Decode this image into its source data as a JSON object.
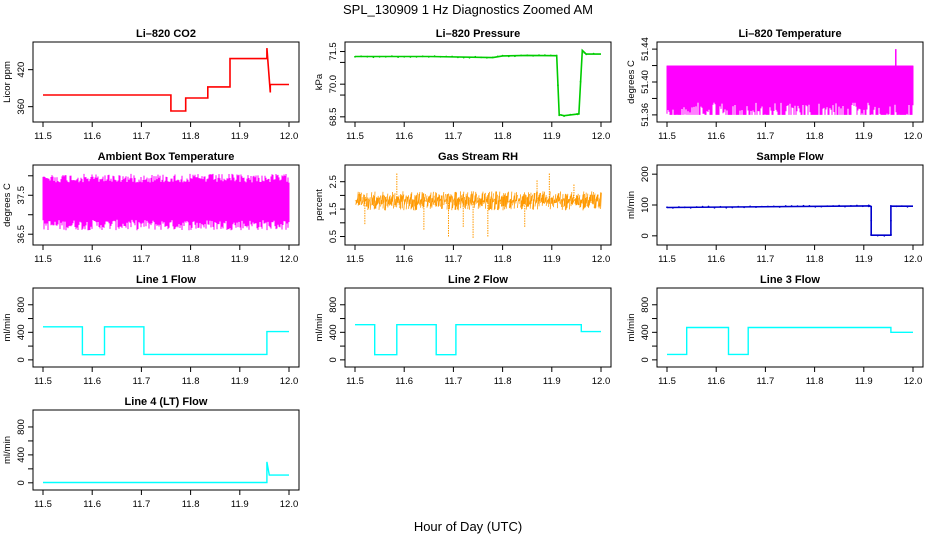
{
  "figure": {
    "title": "SPL_130909  1 Hz Diagnostics Zoomed AM",
    "xlabel": "Hour of Day (UTC)"
  },
  "chart_data": [
    {
      "id": "co2",
      "type": "line",
      "title": "Li–820 CO2",
      "ylabel": "Licor ppm",
      "color": "#ff0000",
      "xlim": [
        11.5,
        12.0
      ],
      "ylim": [
        340,
        460
      ],
      "xticks": [
        "11.5",
        "11.6",
        "11.7",
        "11.8",
        "11.9",
        "12.0"
      ],
      "yticks": [
        {
          "v": 360,
          "label": "360"
        },
        {
          "v": 420,
          "label": "420"
        }
      ],
      "style": "step",
      "x": [
        11.5,
        11.76,
        11.76,
        11.79,
        11.79,
        11.835,
        11.835,
        11.88,
        11.88,
        11.955,
        11.955,
        11.962,
        11.962,
        12.0
      ],
      "y": [
        379,
        379,
        353,
        353,
        374,
        374,
        392,
        392,
        438,
        438,
        455,
        383,
        396,
        396
      ]
    },
    {
      "id": "pressure",
      "type": "line",
      "title": "Li–820 Pressure",
      "ylabel": "kPa",
      "color": "#00cc00",
      "xlim": [
        11.5,
        12.0
      ],
      "ylim": [
        68.4,
        71.8
      ],
      "xticks": [
        "11.5",
        "11.6",
        "11.7",
        "11.8",
        "11.9",
        "12.0"
      ],
      "yticks": [
        {
          "v": 68.5,
          "label": "68.5"
        },
        {
          "v": 69.5,
          "label": ""
        },
        {
          "v": 70.0,
          "label": "70.0"
        },
        {
          "v": 71.0,
          "label": ""
        },
        {
          "v": 71.5,
          "label": "71.5"
        }
      ],
      "style": "line",
      "x": [
        11.5,
        11.65,
        11.78,
        11.8,
        11.85,
        11.91,
        11.915,
        11.925,
        11.95,
        11.955,
        11.962,
        11.97,
        12.0
      ],
      "y": [
        71.27,
        71.27,
        71.22,
        71.3,
        71.32,
        71.31,
        68.6,
        68.55,
        68.62,
        68.65,
        71.55,
        71.38,
        71.38
      ]
    },
    {
      "id": "licor-temp",
      "type": "area",
      "title": "Li–820 Temperature",
      "ylabel": "degrees C",
      "color": "#ff00ff",
      "xlim": [
        11.5,
        12.0
      ],
      "ylim": [
        51.355,
        51.445
      ],
      "xticks": [
        "11.5",
        "11.6",
        "11.7",
        "11.8",
        "11.9",
        "12.0"
      ],
      "yticks": [
        {
          "v": 51.36,
          "label": "51.36"
        },
        {
          "v": 51.38,
          "label": ""
        },
        {
          "v": 51.4,
          "label": "51.40"
        },
        {
          "v": 51.42,
          "label": ""
        },
        {
          "v": 51.44,
          "label": "51.44"
        }
      ],
      "style": "band",
      "band_low": 51.36,
      "band_high": 51.42,
      "band_mid_low": 51.375,
      "band_mid_high": 51.405,
      "spike": {
        "x": 11.965,
        "y": 51.44
      }
    },
    {
      "id": "box-temp",
      "type": "area",
      "title": "Ambient Box Temperature",
      "ylabel": "degrees C",
      "color": "#ff00ff",
      "xlim": [
        11.5,
        12.0
      ],
      "ylim": [
        36.3,
        38.2
      ],
      "xticks": [
        "11.5",
        "11.6",
        "11.7",
        "11.8",
        "11.9",
        "12.0"
      ],
      "yticks": [
        {
          "v": 36.5,
          "label": "36.5"
        },
        {
          "v": 37.0,
          "label": ""
        },
        {
          "v": 37.5,
          "label": "37.5"
        },
        {
          "v": 38.0,
          "label": ""
        }
      ],
      "style": "band",
      "band_low": 36.6,
      "band_high": 38.05,
      "band_mid_low": 36.9,
      "band_mid_high": 37.8
    },
    {
      "id": "rh",
      "type": "line",
      "title": "Gas Stream RH",
      "ylabel": "percent",
      "color": "#ff9900",
      "xlim": [
        11.5,
        12.0
      ],
      "ylim": [
        0.3,
        3.0
      ],
      "xticks": [
        "11.5",
        "11.6",
        "11.7",
        "11.8",
        "11.9",
        "12.0"
      ],
      "yticks": [
        {
          "v": 0.5,
          "label": "0.5"
        },
        {
          "v": 1.0,
          "label": ""
        },
        {
          "v": 1.5,
          "label": "1.5"
        },
        {
          "v": 2.0,
          "label": ""
        },
        {
          "v": 2.5,
          "label": "2.5"
        }
      ],
      "style": "noise",
      "noise_low": 1.45,
      "noise_high": 2.15,
      "spikes": [
        {
          "x": 11.585,
          "y": 2.8
        },
        {
          "x": 11.64,
          "y": 0.75
        },
        {
          "x": 11.69,
          "y": 0.5
        },
        {
          "x": 11.72,
          "y": 0.85
        },
        {
          "x": 11.74,
          "y": 0.45
        },
        {
          "x": 11.77,
          "y": 0.5
        },
        {
          "x": 11.845,
          "y": 0.85
        },
        {
          "x": 11.87,
          "y": 2.55
        },
        {
          "x": 11.895,
          "y": 2.8
        },
        {
          "x": 11.945,
          "y": 2.4
        },
        {
          "x": 11.52,
          "y": 0.95
        }
      ]
    },
    {
      "id": "sample-flow",
      "type": "line",
      "title": "Sample Flow",
      "ylabel": "ml/min",
      "color": "#0000cc",
      "xlim": [
        11.5,
        12.0
      ],
      "ylim": [
        -20,
        220
      ],
      "xticks": [
        "11.5",
        "11.6",
        "11.7",
        "11.8",
        "11.9",
        "12.0"
      ],
      "yticks": [
        {
          "v": 0,
          "label": "0"
        },
        {
          "v": 100,
          "label": "100"
        },
        {
          "v": 200,
          "label": "200"
        }
      ],
      "style": "step",
      "x": [
        11.5,
        11.91,
        11.91,
        11.915,
        11.915,
        11.955,
        11.955,
        12.0
      ],
      "y": [
        92,
        97,
        97,
        95,
        2,
        2,
        96,
        96
      ]
    },
    {
      "id": "line1",
      "type": "line",
      "title": "Line 1 Flow",
      "ylabel": "ml/min",
      "color": "#00ffff",
      "xlim": [
        11.5,
        12.0
      ],
      "ylim": [
        -60,
        1000
      ],
      "xticks": [
        "11.5",
        "11.6",
        "11.7",
        "11.8",
        "11.9",
        "12.0"
      ],
      "yticks": [
        {
          "v": 0,
          "label": "0"
        },
        {
          "v": 200,
          "label": ""
        },
        {
          "v": 400,
          "label": "400"
        },
        {
          "v": 600,
          "label": ""
        },
        {
          "v": 800,
          "label": "800"
        }
      ],
      "style": "step",
      "x": [
        11.5,
        11.58,
        11.58,
        11.625,
        11.625,
        11.705,
        11.705,
        11.955,
        11.955,
        12.0
      ],
      "y": [
        480,
        480,
        75,
        75,
        480,
        480,
        80,
        80,
        410,
        410
      ]
    },
    {
      "id": "line2",
      "type": "line",
      "title": "Line 2 Flow",
      "ylabel": "ml/min",
      "color": "#00ffff",
      "xlim": [
        11.5,
        12.0
      ],
      "ylim": [
        -60,
        1000
      ],
      "xticks": [
        "11.5",
        "11.6",
        "11.7",
        "11.8",
        "11.9",
        "12.0"
      ],
      "yticks": [
        {
          "v": 0,
          "label": "0"
        },
        {
          "v": 200,
          "label": ""
        },
        {
          "v": 400,
          "label": "400"
        },
        {
          "v": 600,
          "label": ""
        },
        {
          "v": 800,
          "label": "800"
        }
      ],
      "style": "step",
      "x": [
        11.5,
        11.54,
        11.54,
        11.585,
        11.585,
        11.665,
        11.665,
        11.705,
        11.705,
        11.96,
        11.96,
        12.0
      ],
      "y": [
        510,
        510,
        75,
        75,
        510,
        510,
        75,
        75,
        510,
        510,
        410,
        410
      ]
    },
    {
      "id": "line3",
      "type": "line",
      "title": "Line 3 Flow",
      "ylabel": "ml/min",
      "color": "#00ffff",
      "xlim": [
        11.5,
        12.0
      ],
      "ylim": [
        -60,
        1000
      ],
      "xticks": [
        "11.5",
        "11.6",
        "11.7",
        "11.8",
        "11.9",
        "12.0"
      ],
      "yticks": [
        {
          "v": 0,
          "label": "0"
        },
        {
          "v": 200,
          "label": ""
        },
        {
          "v": 400,
          "label": "400"
        },
        {
          "v": 600,
          "label": ""
        },
        {
          "v": 800,
          "label": "800"
        }
      ],
      "style": "step",
      "x": [
        11.5,
        11.54,
        11.54,
        11.625,
        11.625,
        11.665,
        11.665,
        11.955,
        11.955,
        12.0
      ],
      "y": [
        80,
        80,
        470,
        470,
        80,
        80,
        470,
        470,
        400,
        400
      ]
    },
    {
      "id": "line4",
      "type": "line",
      "title": "Line 4 (LT) Flow",
      "ylabel": "ml/min",
      "color": "#00ffff",
      "xlim": [
        11.5,
        12.0
      ],
      "ylim": [
        -60,
        1000
      ],
      "xticks": [
        "11.5",
        "11.6",
        "11.7",
        "11.8",
        "11.9",
        "12.0"
      ],
      "yticks": [
        {
          "v": 0,
          "label": "0"
        },
        {
          "v": 200,
          "label": ""
        },
        {
          "v": 400,
          "label": "400"
        },
        {
          "v": 600,
          "label": ""
        },
        {
          "v": 800,
          "label": "800"
        }
      ],
      "style": "step",
      "x": [
        11.5,
        11.955,
        11.955,
        11.96,
        11.96,
        12.0
      ],
      "y": [
        5,
        5,
        300,
        110,
        110,
        110
      ]
    }
  ]
}
